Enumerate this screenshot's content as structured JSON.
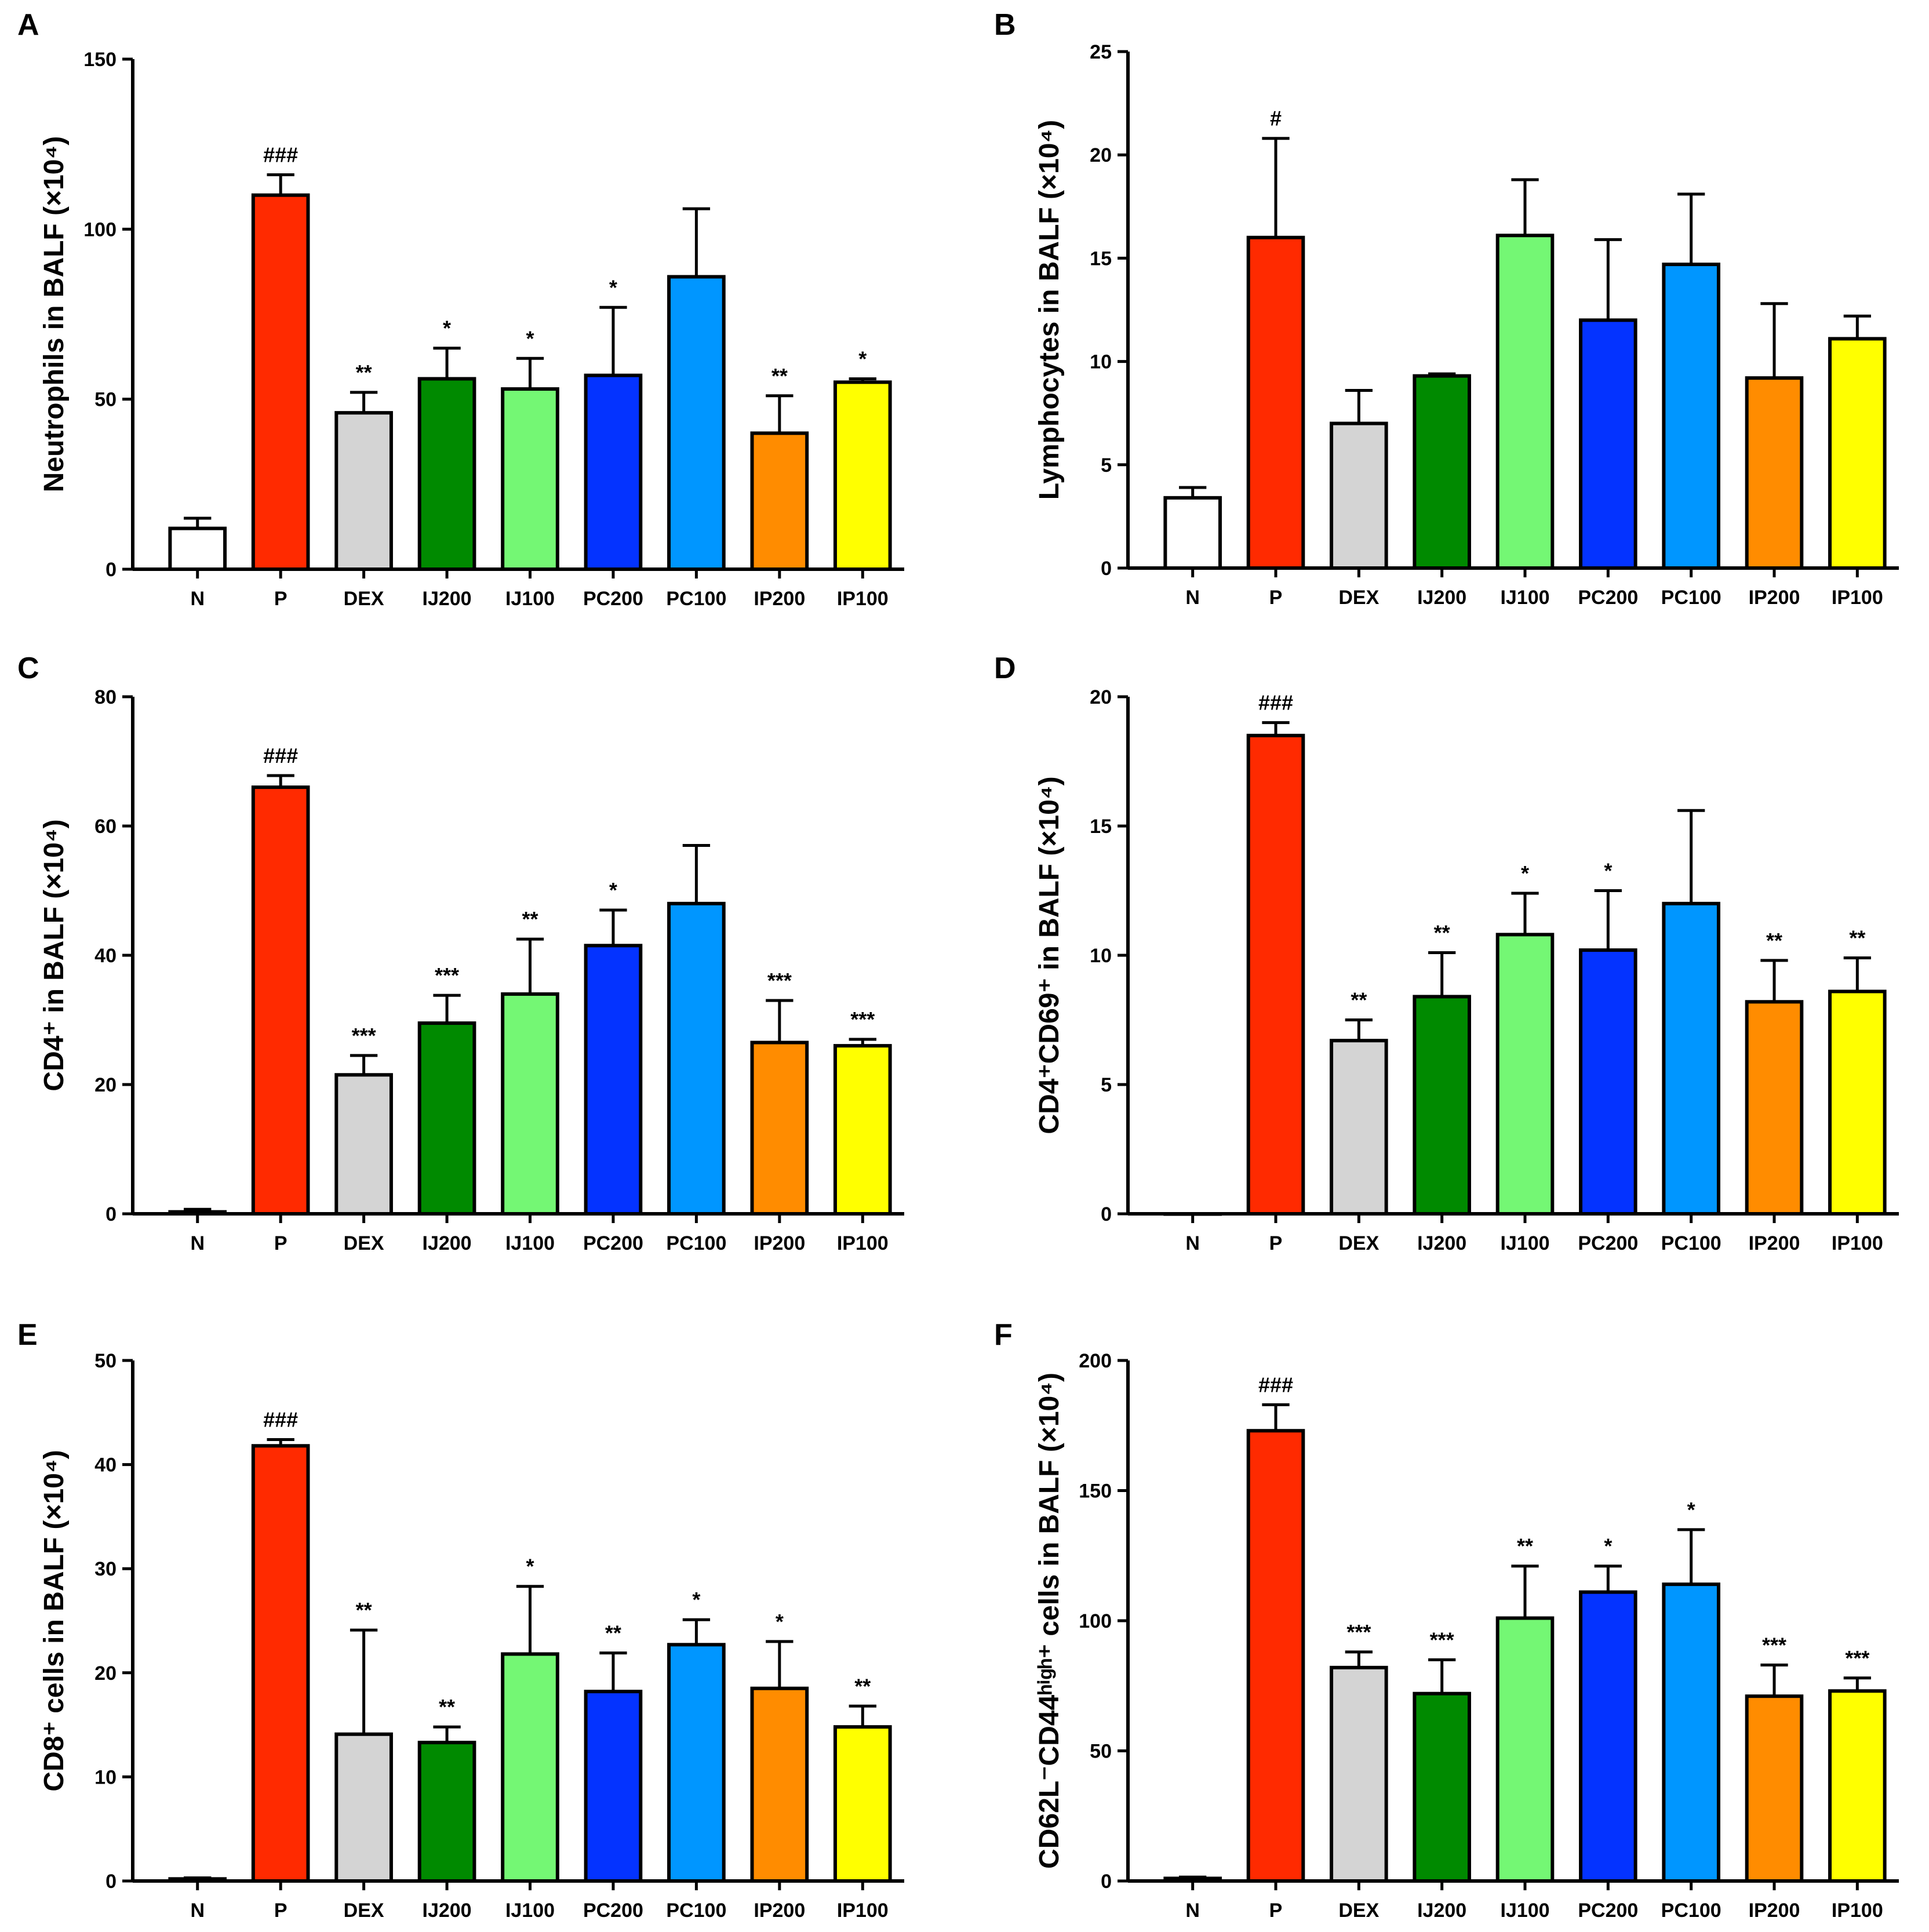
{
  "colors": [
    "#ffffff",
    "#ff2a00",
    "#d4d4d4",
    "#008a00",
    "#74f774",
    "#0433ff",
    "#0096ff",
    "#ff8c00",
    "#ffff00"
  ],
  "chart_data": [
    {
      "panel": "A",
      "type": "bar",
      "ylabel": "Neutrophils in BALF (×10⁴)",
      "ylim": [
        0,
        150
      ],
      "yticks": [
        0,
        50,
        100,
        150
      ],
      "categories": [
        "N",
        "P",
        "DEX",
        "IJ200",
        "IJ100",
        "PC200",
        "PC100",
        "IP200",
        "IP100"
      ],
      "values": [
        12,
        110,
        46,
        56,
        53,
        57,
        86,
        40,
        55
      ],
      "errors": [
        3,
        6,
        6,
        9,
        9,
        20,
        20,
        11,
        1
      ],
      "significance": [
        "",
        "###",
        "**",
        "*",
        "*",
        "*",
        "",
        "**",
        "*"
      ]
    },
    {
      "panel": "B",
      "type": "bar",
      "ylabel": "Lymphocytes in BALF (×10⁴)",
      "ylim": [
        0,
        25
      ],
      "yticks": [
        0,
        5,
        10,
        15,
        20,
        25
      ],
      "categories": [
        "N",
        "P",
        "DEX",
        "IJ200",
        "IJ100",
        "PC200",
        "PC100",
        "IP200",
        "IP100"
      ],
      "values": [
        3.4,
        16,
        7,
        9.3,
        16.1,
        12,
        14.7,
        9.2,
        11.1
      ],
      "errors": [
        0.5,
        4.8,
        1.6,
        0.1,
        2.7,
        3.9,
        3.4,
        3.6,
        1.1
      ],
      "significance": [
        "",
        "#",
        "",
        "",
        "",
        "",
        "",
        "",
        ""
      ]
    },
    {
      "panel": "C",
      "type": "bar",
      "ylabel": "CD4⁺ in BALF (×10⁴)",
      "ylim": [
        0,
        80
      ],
      "yticks": [
        0,
        20,
        40,
        60,
        80
      ],
      "categories": [
        "N",
        "P",
        "DEX",
        "IJ200",
        "IJ100",
        "PC200",
        "PC100",
        "IP200",
        "IP100"
      ],
      "values": [
        0.3,
        66,
        21.5,
        29.5,
        34,
        41.5,
        48,
        26.5,
        26
      ],
      "errors": [
        0.4,
        1.8,
        3,
        4.3,
        8.5,
        5.5,
        9,
        6.5,
        1
      ],
      "significance": [
        "",
        "###",
        "***",
        "***",
        "**",
        "*",
        "",
        "***",
        "***"
      ]
    },
    {
      "panel": "D",
      "type": "bar",
      "ylabel": "CD4⁺CD69⁺ in BALF (×10⁴)",
      "ylim": [
        0,
        20
      ],
      "yticks": [
        0,
        5,
        10,
        15,
        20
      ],
      "categories": [
        "N",
        "P",
        "DEX",
        "IJ200",
        "IJ100",
        "PC200",
        "PC100",
        "IP200",
        "IP100"
      ],
      "values": [
        0,
        18.5,
        6.7,
        8.4,
        10.8,
        10.2,
        12,
        8.2,
        8.6
      ],
      "errors": [
        0,
        0.5,
        0.8,
        1.7,
        1.6,
        2.3,
        3.6,
        1.6,
        1.3
      ],
      "significance": [
        "",
        "###",
        "**",
        "**",
        "*",
        "*",
        "",
        "**",
        "**"
      ]
    },
    {
      "panel": "E",
      "type": "bar",
      "ylabel": "CD8⁺ cells in BALF (×10⁴)",
      "ylim": [
        0,
        50
      ],
      "yticks": [
        0,
        10,
        20,
        30,
        40,
        50
      ],
      "categories": [
        "N",
        "P",
        "DEX",
        "IJ200",
        "IJ100",
        "PC200",
        "PC100",
        "IP200",
        "IP100"
      ],
      "values": [
        0.2,
        41.8,
        14.1,
        13.3,
        21.8,
        18.2,
        22.7,
        18.5,
        14.8
      ],
      "errors": [
        0.1,
        0.6,
        10,
        1.5,
        6.5,
        3.7,
        2.4,
        4.5,
        2
      ],
      "significance": [
        "",
        "###",
        "**",
        "**",
        "*",
        "**",
        "*",
        "*",
        "**"
      ]
    },
    {
      "panel": "F",
      "type": "bar",
      "ylabel": "CD62L⁻CD44ʰⁱᵍʰ⁺ cells in BALF (×10⁴)",
      "ylim": [
        0,
        200
      ],
      "yticks": [
        0,
        50,
        100,
        150,
        200
      ],
      "categories": [
        "N",
        "P",
        "DEX",
        "IJ200",
        "IJ100",
        "PC200",
        "PC100",
        "IP200",
        "IP100"
      ],
      "values": [
        1,
        173,
        82,
        72,
        101,
        111,
        114,
        71,
        73
      ],
      "errors": [
        0.5,
        10,
        6,
        13,
        20,
        10,
        21,
        12,
        5
      ],
      "significance": [
        "",
        "###",
        "***",
        "***",
        "**",
        "*",
        "*",
        "***",
        "***"
      ]
    }
  ]
}
